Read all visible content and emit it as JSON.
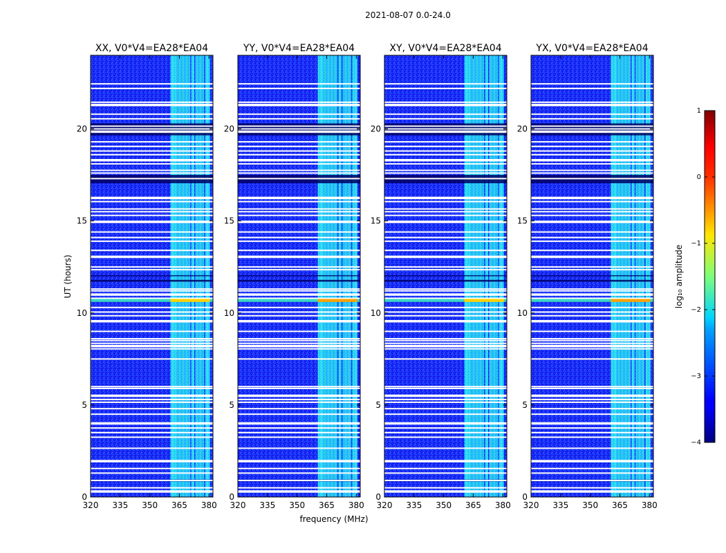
{
  "suptitle": "2021-08-07 0.0-24.0",
  "colormap": "jet",
  "chart_data": {
    "type": "heatmap",
    "title": "2021-08-07 0.0-24.0",
    "xlabel": "frequency (MHz)",
    "ylabel": "UT (hours)",
    "xlim": [
      320,
      382
    ],
    "ylim": [
      0,
      24
    ],
    "xticks": [
      320,
      335,
      350,
      365,
      380
    ],
    "yticks": [
      0,
      5,
      10,
      15,
      20
    ],
    "panels": [
      {
        "title": "XX, V0*V4=EA28*EA04"
      },
      {
        "title": "YY, V0*V4=EA28*EA04"
      },
      {
        "title": "XY, V0*V4=EA28*EA04"
      },
      {
        "title": "YX, V0*V4=EA28*EA04"
      }
    ],
    "band_segments": [
      [
        360.5,
        363.5
      ],
      [
        363.5,
        370.5
      ],
      [
        371,
        372.5
      ],
      [
        373,
        377.5
      ],
      [
        378,
        380.5
      ]
    ],
    "gap_rows_hours": [
      0.3,
      0.5,
      0.9,
      1.3,
      1.55,
      1.95,
      2.65,
      3.25,
      3.5,
      3.75,
      4.0,
      4.5,
      4.8,
      5.15,
      5.3,
      5.5,
      5.9,
      6.0,
      7.5,
      8.05,
      8.2,
      8.35,
      8.5,
      8.6,
      9.0,
      9.55,
      9.85,
      10.05,
      10.3,
      10.8,
      11.0,
      11.2,
      11.3,
      12.35,
      12.5,
      13.05,
      13.4,
      13.9,
      14.1,
      14.4,
      14.95,
      15.3,
      15.5,
      15.65,
      16.05,
      16.25,
      17.3,
      17.6,
      17.75,
      18.1,
      18.3,
      18.6,
      18.8,
      19.05,
      19.3,
      19.85,
      20.0,
      20.15,
      20.55,
      20.8,
      21.3,
      21.45,
      22.2,
      22.45
    ],
    "dark_rows_hours": [
      [
        0.85,
        0.95
      ],
      [
        11.7,
        11.8
      ],
      [
        12.0,
        12.05
      ],
      [
        17.05,
        17.5
      ],
      [
        19.65,
        20.3
      ]
    ],
    "bright_rows_hours": [
      [
        10.6,
        10.8
      ]
    ],
    "colorbar": {
      "label": "log₁₀ amplitude",
      "range": [
        -4,
        1
      ],
      "ticks": [
        1,
        0,
        -1,
        -2,
        -3,
        -4
      ],
      "tick_labels": [
        "1",
        "0",
        "−1",
        "−2",
        "−3",
        "−4"
      ]
    }
  }
}
